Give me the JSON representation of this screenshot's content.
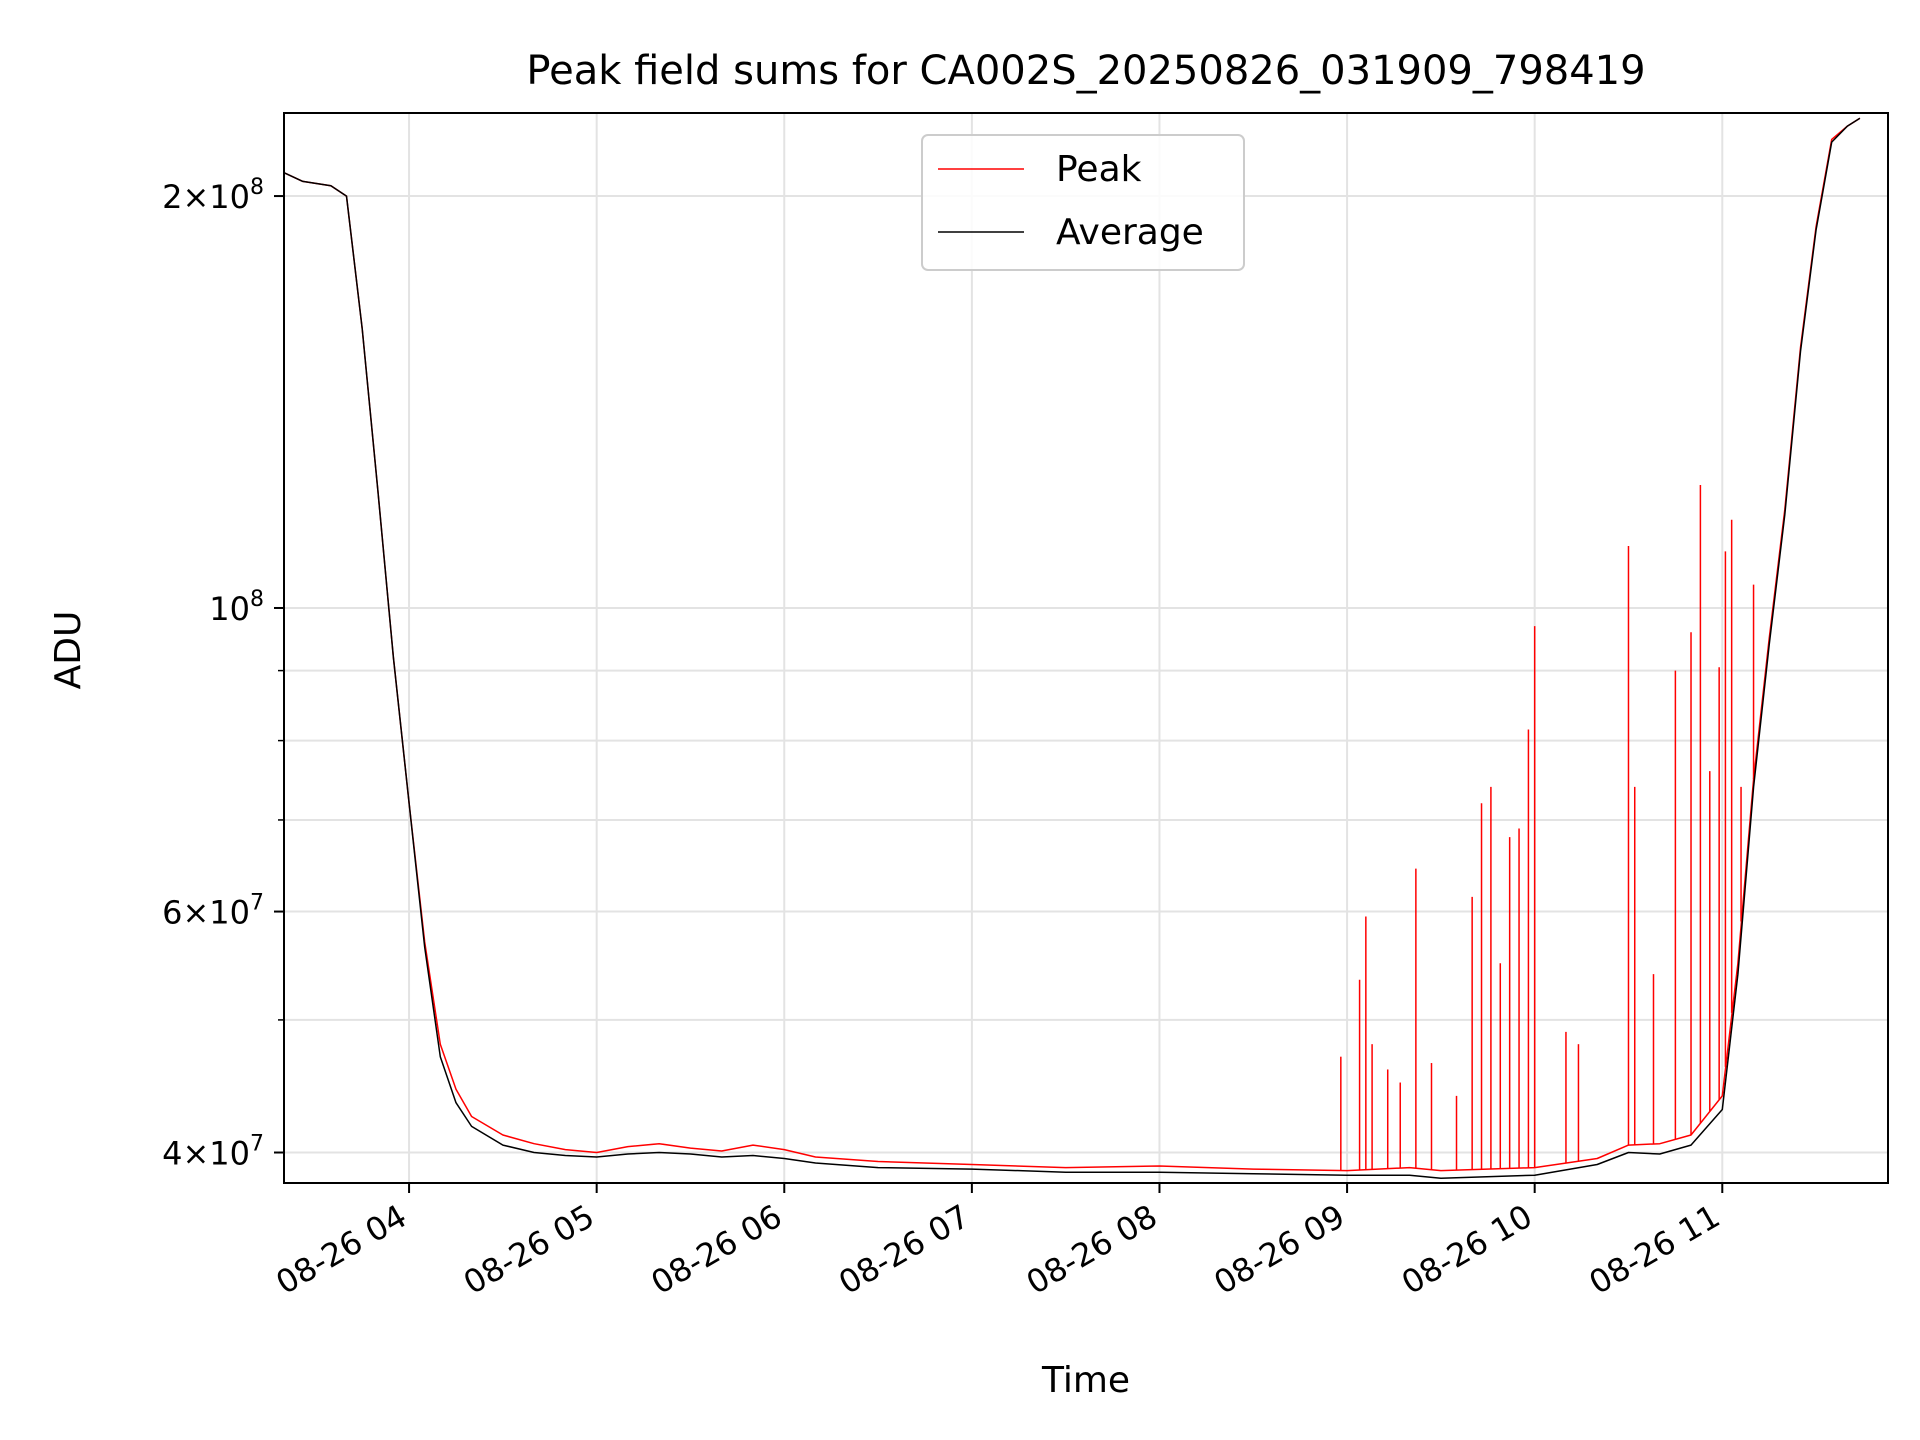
{
  "chart_data": {
    "type": "line",
    "title": "Peak field sums for CA002S_20250826_031909_798419",
    "xlabel": "Time",
    "ylabel": "ADU",
    "y_scale": "log",
    "xlim": [
      "2025-08-26T03:20:00",
      "2025-08-26T11:53:00"
    ],
    "ylim": [
      38000000,
      230000000
    ],
    "x_ticks": [
      "2025-08-26T04:00:00",
      "2025-08-26T05:00:00",
      "2025-08-26T06:00:00",
      "2025-08-26T07:00:00",
      "2025-08-26T08:00:00",
      "2025-08-26T09:00:00",
      "2025-08-26T10:00:00",
      "2025-08-26T11:00:00"
    ],
    "x_tick_labels": [
      "08-26 04",
      "08-26 05",
      "08-26 06",
      "08-26 07",
      "08-26 08",
      "08-26 09",
      "08-26 10",
      "08-26 11"
    ],
    "y_ticks": [
      {
        "value": 40000000,
        "mantissa": "4",
        "exp": "7"
      },
      {
        "value": 60000000,
        "mantissa": "6",
        "exp": "7"
      },
      {
        "value": 100000000,
        "mantissa": "",
        "exp": "8"
      },
      {
        "value": 200000000,
        "mantissa": "2",
        "exp": "8"
      }
    ],
    "y_minor_ticks": [
      50000000,
      70000000,
      80000000,
      90000000
    ],
    "grid": true,
    "legend_position": "top-center",
    "series": [
      {
        "name": "Peak",
        "color": "#ff0000",
        "points": [
          [
            "2025-08-26T03:20:00",
            208000000
          ],
          [
            "2025-08-26T03:26:00",
            205000000
          ],
          [
            "2025-08-26T03:35:00",
            203500000
          ],
          [
            "2025-08-26T03:40:00",
            200000000
          ],
          [
            "2025-08-26T03:45:00",
            160000000
          ],
          [
            "2025-08-26T03:50:00",
            122000000
          ],
          [
            "2025-08-26T03:55:00",
            92000000
          ],
          [
            "2025-08-26T04:00:00",
            72000000
          ],
          [
            "2025-08-26T04:05:00",
            57000000
          ],
          [
            "2025-08-26T04:10:00",
            48000000
          ],
          [
            "2025-08-26T04:15:00",
            44500000
          ],
          [
            "2025-08-26T04:20:00",
            42500000
          ],
          [
            "2025-08-26T04:30:00",
            41200000
          ],
          [
            "2025-08-26T04:40:00",
            40600000
          ],
          [
            "2025-08-26T04:50:00",
            40200000
          ],
          [
            "2025-08-26T05:00:00",
            40000000
          ],
          [
            "2025-08-26T05:10:00",
            40400000
          ],
          [
            "2025-08-26T05:20:00",
            40600000
          ],
          [
            "2025-08-26T05:30:00",
            40300000
          ],
          [
            "2025-08-26T05:40:00",
            40100000
          ],
          [
            "2025-08-26T05:50:00",
            40500000
          ],
          [
            "2025-08-26T06:00:00",
            40200000
          ],
          [
            "2025-08-26T06:10:00",
            39700000
          ],
          [
            "2025-08-26T06:30:00",
            39400000
          ],
          [
            "2025-08-26T07:00:00",
            39200000
          ],
          [
            "2025-08-26T07:30:00",
            39000000
          ],
          [
            "2025-08-26T08:00:00",
            39100000
          ],
          [
            "2025-08-26T08:30:00",
            38900000
          ],
          [
            "2025-08-26T09:00:00",
            38800000
          ],
          [
            "2025-08-26T09:20:00",
            39000000
          ],
          [
            "2025-08-26T09:30:00",
            38800000
          ],
          [
            "2025-08-26T10:00:00",
            39000000
          ],
          [
            "2025-08-26T10:20:00",
            39600000
          ],
          [
            "2025-08-26T10:30:00",
            40500000
          ],
          [
            "2025-08-26T10:40:00",
            40600000
          ],
          [
            "2025-08-26T10:50:00",
            41200000
          ],
          [
            "2025-08-26T11:00:00",
            44000000
          ],
          [
            "2025-08-26T11:05:00",
            55000000
          ],
          [
            "2025-08-26T11:10:00",
            75000000
          ],
          [
            "2025-08-26T11:15:00",
            95000000
          ],
          [
            "2025-08-26T11:20:00",
            118000000
          ],
          [
            "2025-08-26T11:25:00",
            155000000
          ],
          [
            "2025-08-26T11:30:00",
            190000000
          ],
          [
            "2025-08-26T11:35:00",
            220000000
          ],
          [
            "2025-08-26T11:40:00",
            225000000
          ],
          [
            "2025-08-26T11:44:00",
            228000000
          ]
        ],
        "spikes": [
          [
            "2025-08-26T08:58:00",
            47000000
          ],
          [
            "2025-08-26T09:04:00",
            53500000
          ],
          [
            "2025-08-26T09:06:00",
            59500000
          ],
          [
            "2025-08-26T09:08:00",
            48000000
          ],
          [
            "2025-08-26T09:13:00",
            46000000
          ],
          [
            "2025-08-26T09:17:00",
            45000000
          ],
          [
            "2025-08-26T09:22:00",
            64500000
          ],
          [
            "2025-08-26T09:27:00",
            46500000
          ],
          [
            "2025-08-26T09:35:00",
            44000000
          ],
          [
            "2025-08-26T09:40:00",
            61500000
          ],
          [
            "2025-08-26T09:43:00",
            72000000
          ],
          [
            "2025-08-26T09:46:00",
            74000000
          ],
          [
            "2025-08-26T09:49:00",
            55000000
          ],
          [
            "2025-08-26T09:52:00",
            68000000
          ],
          [
            "2025-08-26T09:55:00",
            69000000
          ],
          [
            "2025-08-26T09:58:00",
            81500000
          ],
          [
            "2025-08-26T10:00:00",
            97000000
          ],
          [
            "2025-08-26T10:10:00",
            49000000
          ],
          [
            "2025-08-26T10:14:00",
            48000000
          ],
          [
            "2025-08-26T10:30:00",
            111000000
          ],
          [
            "2025-08-26T10:32:00",
            74000000
          ],
          [
            "2025-08-26T10:38:00",
            54000000
          ],
          [
            "2025-08-26T10:45:00",
            90000000
          ],
          [
            "2025-08-26T10:50:00",
            96000000
          ],
          [
            "2025-08-26T10:53:00",
            123000000
          ],
          [
            "2025-08-26T10:56:00",
            76000000
          ],
          [
            "2025-08-26T10:59:00",
            90500000
          ],
          [
            "2025-08-26T11:01:00",
            110000000
          ],
          [
            "2025-08-26T11:03:00",
            116000000
          ],
          [
            "2025-08-26T11:06:00",
            74000000
          ],
          [
            "2025-08-26T11:10:00",
            104000000
          ]
        ]
      },
      {
        "name": "Average",
        "color": "#000000",
        "points": [
          [
            "2025-08-26T03:20:00",
            208000000
          ],
          [
            "2025-08-26T03:26:00",
            205000000
          ],
          [
            "2025-08-26T03:35:00",
            203500000
          ],
          [
            "2025-08-26T03:40:00",
            200000000
          ],
          [
            "2025-08-26T03:45:00",
            160000000
          ],
          [
            "2025-08-26T03:50:00",
            122000000
          ],
          [
            "2025-08-26T03:55:00",
            92000000
          ],
          [
            "2025-08-26T04:00:00",
            72000000
          ],
          [
            "2025-08-26T04:05:00",
            56500000
          ],
          [
            "2025-08-26T04:10:00",
            47000000
          ],
          [
            "2025-08-26T04:15:00",
            43500000
          ],
          [
            "2025-08-26T04:20:00",
            41800000
          ],
          [
            "2025-08-26T04:30:00",
            40500000
          ],
          [
            "2025-08-26T04:40:00",
            40000000
          ],
          [
            "2025-08-26T04:50:00",
            39800000
          ],
          [
            "2025-08-26T05:00:00",
            39700000
          ],
          [
            "2025-08-26T05:10:00",
            39900000
          ],
          [
            "2025-08-26T05:20:00",
            40000000
          ],
          [
            "2025-08-26T05:30:00",
            39900000
          ],
          [
            "2025-08-26T05:40:00",
            39700000
          ],
          [
            "2025-08-26T05:50:00",
            39800000
          ],
          [
            "2025-08-26T06:00:00",
            39600000
          ],
          [
            "2025-08-26T06:10:00",
            39300000
          ],
          [
            "2025-08-26T06:30:00",
            39000000
          ],
          [
            "2025-08-26T07:00:00",
            38900000
          ],
          [
            "2025-08-26T07:30:00",
            38700000
          ],
          [
            "2025-08-26T08:00:00",
            38700000
          ],
          [
            "2025-08-26T08:30:00",
            38600000
          ],
          [
            "2025-08-26T09:00:00",
            38500000
          ],
          [
            "2025-08-26T09:20:00",
            38500000
          ],
          [
            "2025-08-26T09:30:00",
            38300000
          ],
          [
            "2025-08-26T10:00:00",
            38500000
          ],
          [
            "2025-08-26T10:20:00",
            39200000
          ],
          [
            "2025-08-26T10:30:00",
            40000000
          ],
          [
            "2025-08-26T10:40:00",
            39900000
          ],
          [
            "2025-08-26T10:50:00",
            40500000
          ],
          [
            "2025-08-26T11:00:00",
            43000000
          ],
          [
            "2025-08-26T11:05:00",
            54000000
          ],
          [
            "2025-08-26T11:10:00",
            74000000
          ],
          [
            "2025-08-26T11:15:00",
            94000000
          ],
          [
            "2025-08-26T11:20:00",
            117000000
          ],
          [
            "2025-08-26T11:25:00",
            154000000
          ],
          [
            "2025-08-26T11:30:00",
            189000000
          ],
          [
            "2025-08-26T11:35:00",
            219000000
          ],
          [
            "2025-08-26T11:40:00",
            225000000
          ],
          [
            "2025-08-26T11:44:00",
            228000000
          ]
        ]
      }
    ]
  }
}
